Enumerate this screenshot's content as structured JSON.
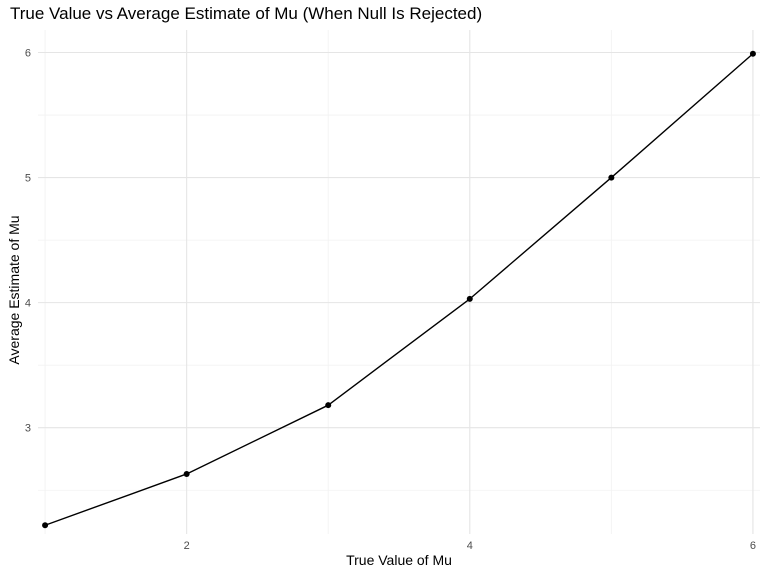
{
  "chart_data": {
    "type": "line",
    "title": "True Value vs Average Estimate of Mu (When Null Is Rejected)",
    "xlabel": "True Value of Mu",
    "ylabel": "Average Estimate of Mu",
    "x": [
      1,
      2,
      3,
      4,
      5,
      6
    ],
    "series": [
      {
        "values": [
          2.22,
          2.63,
          3.18,
          4.03,
          5.0,
          5.99
        ]
      }
    ],
    "xlim": [
      0.95,
      6.05
    ],
    "ylim": [
      2.15,
      6.18
    ],
    "x_ticks": [
      2,
      4,
      6
    ],
    "y_ticks": [
      3,
      4,
      5,
      6
    ],
    "x_tick_labels": [
      "2",
      "4",
      "6"
    ],
    "y_tick_labels": [
      "3",
      "4",
      "5",
      "6"
    ],
    "grid": true,
    "line_color": "#000000",
    "point_color": "#000000",
    "grid_major_color": "#e5e5e5",
    "grid_minor_color": "#f2f2f2",
    "background": "#ffffff"
  }
}
